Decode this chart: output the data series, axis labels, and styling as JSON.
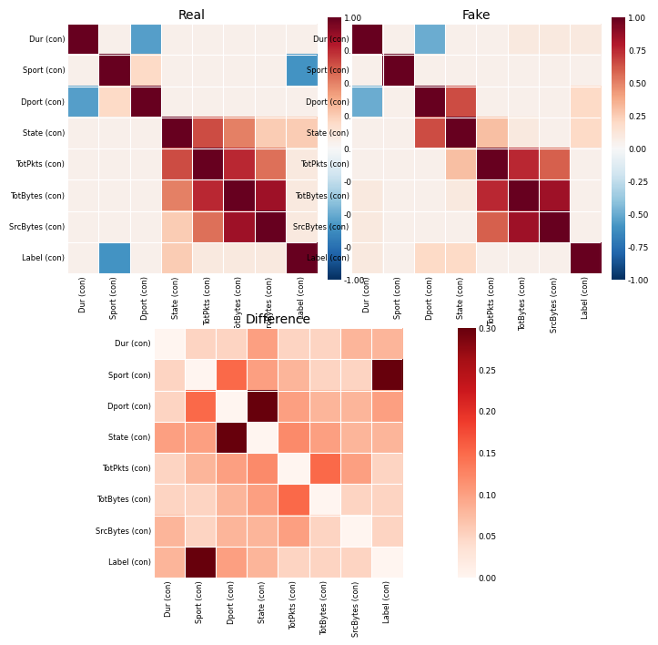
{
  "labels": [
    "Dur (con)",
    "Sport (con)",
    "Dport (con)",
    "State (con)",
    "TotPkts (con)",
    "TotBytes (con)",
    "SrcBytes (con)",
    "Label (con)"
  ],
  "real_matrix": [
    [
      1.0,
      0.05,
      -0.55,
      0.05,
      0.05,
      0.05,
      0.05,
      0.05
    ],
    [
      0.05,
      1.0,
      0.2,
      0.05,
      0.05,
      0.05,
      0.05,
      -0.6
    ],
    [
      -0.55,
      0.2,
      1.0,
      0.05,
      0.05,
      0.05,
      0.05,
      0.05
    ],
    [
      0.05,
      0.05,
      0.05,
      1.0,
      0.65,
      0.5,
      0.25,
      0.25
    ],
    [
      0.05,
      0.05,
      0.05,
      0.65,
      1.0,
      0.75,
      0.55,
      0.1
    ],
    [
      0.05,
      0.05,
      0.05,
      0.5,
      0.75,
      1.0,
      0.85,
      0.1
    ],
    [
      0.05,
      0.05,
      0.05,
      0.25,
      0.55,
      0.85,
      1.0,
      0.1
    ],
    [
      0.05,
      -0.6,
      0.05,
      0.25,
      0.1,
      0.1,
      0.1,
      1.0
    ]
  ],
  "fake_matrix": [
    [
      1.0,
      0.05,
      -0.5,
      0.05,
      0.05,
      0.1,
      0.1,
      0.1
    ],
    [
      0.05,
      1.0,
      0.05,
      0.05,
      0.05,
      0.05,
      0.05,
      0.05
    ],
    [
      -0.5,
      0.05,
      1.0,
      0.65,
      0.05,
      0.05,
      0.05,
      0.2
    ],
    [
      0.05,
      0.05,
      0.65,
      1.0,
      0.3,
      0.1,
      0.05,
      0.2
    ],
    [
      0.05,
      0.05,
      0.05,
      0.3,
      1.0,
      0.75,
      0.6,
      0.05
    ],
    [
      0.1,
      0.05,
      0.05,
      0.1,
      0.75,
      1.0,
      0.85,
      0.05
    ],
    [
      0.1,
      0.05,
      0.05,
      0.05,
      0.6,
      0.85,
      1.0,
      0.05
    ],
    [
      0.1,
      0.05,
      0.2,
      0.2,
      0.05,
      0.05,
      0.05,
      1.0
    ]
  ],
  "diff_matrix": [
    [
      0.0,
      0.05,
      0.05,
      0.1,
      0.05,
      0.05,
      0.08,
      0.08
    ],
    [
      0.05,
      0.0,
      0.15,
      0.1,
      0.08,
      0.05,
      0.05,
      0.3
    ],
    [
      0.05,
      0.15,
      0.0,
      0.3,
      0.1,
      0.08,
      0.08,
      0.1
    ],
    [
      0.1,
      0.1,
      0.3,
      0.0,
      0.12,
      0.1,
      0.08,
      0.08
    ],
    [
      0.05,
      0.08,
      0.1,
      0.12,
      0.0,
      0.15,
      0.1,
      0.05
    ],
    [
      0.05,
      0.05,
      0.08,
      0.1,
      0.15,
      0.0,
      0.05,
      0.05
    ],
    [
      0.08,
      0.05,
      0.08,
      0.08,
      0.1,
      0.05,
      0.0,
      0.05
    ],
    [
      0.08,
      0.3,
      0.1,
      0.08,
      0.05,
      0.05,
      0.05,
      0.0
    ]
  ],
  "title_real": "Real",
  "title_fake": "Fake",
  "title_diff": "Difference",
  "vmin_ab": -1.0,
  "vmax_ab": 1.0,
  "vmin_c": 0.0,
  "vmax_c": 0.3,
  "fig_width": 6.85,
  "fig_height": 6.68,
  "title_fontsize": 10,
  "tick_fontsize": 6.0,
  "cbar_fontsize": 6.5,
  "ab_ticks": [
    -1.0,
    -0.75,
    -0.5,
    -0.25,
    0.0,
    0.25,
    0.5,
    0.75,
    1.0
  ],
  "ab_ticklabels": [
    "-1.00",
    "-0.75",
    "-0.50",
    "-0.25",
    "0.00",
    "0.25",
    "0.50",
    "0.75",
    "1.00"
  ],
  "c_ticks": [
    0.0,
    0.05,
    0.1,
    0.15,
    0.2,
    0.25,
    0.3
  ],
  "c_ticklabels": [
    "0.00",
    "0.05",
    "0.10",
    "0.15",
    "0.20",
    "0.25",
    "0.30"
  ]
}
